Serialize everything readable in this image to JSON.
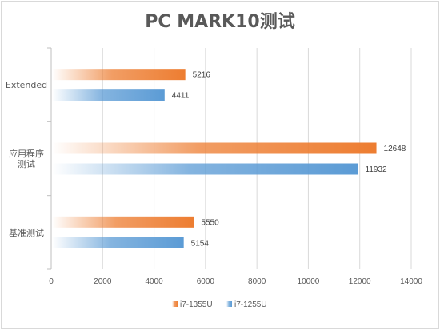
{
  "chart_data": {
    "type": "bar",
    "orientation": "horizontal",
    "title": "PC MARK10测试",
    "categories": [
      "Extended",
      "应用程序测试",
      "基准测试"
    ],
    "category_lines": [
      [
        "Extended"
      ],
      [
        "应用程序",
        "测试"
      ],
      [
        "基准测试"
      ]
    ],
    "series": [
      {
        "name": "i7-1355U",
        "values": [
          5216,
          12648,
          5550
        ],
        "color": "#ed7d31"
      },
      {
        "name": "i7-1255U",
        "values": [
          4411,
          11932,
          5154
        ],
        "color": "#5b9bd5"
      }
    ],
    "xlim": [
      0,
      14000
    ],
    "xticks": [
      0,
      2000,
      4000,
      6000,
      8000,
      10000,
      12000,
      14000
    ],
    "grid": true,
    "legend_position": "bottom",
    "data_labels": true
  }
}
